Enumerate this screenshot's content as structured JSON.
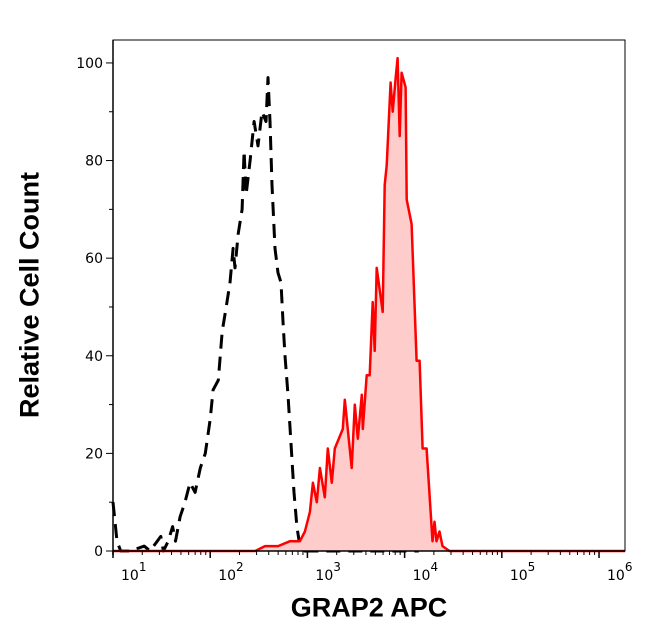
{
  "chart_data": {
    "type": "area",
    "title": "",
    "xlabel": "GRAP2 APC",
    "ylabel": "Relative Cell Count",
    "xscale": "log",
    "xlim": [
      10,
      1850000
    ],
    "ylim": [
      0,
      104.7
    ],
    "grid": false,
    "legend": "none",
    "x_ticks": [
      {
        "base": "10",
        "exp": "1",
        "value": 10
      },
      {
        "base": "10",
        "exp": "2",
        "value": 100
      },
      {
        "base": "10",
        "exp": "3",
        "value": 1000
      },
      {
        "base": "10",
        "exp": "4",
        "value": 10000
      },
      {
        "base": "10",
        "exp": "5",
        "value": 100000
      },
      {
        "base": "10",
        "exp": "6",
        "value": 1000000
      }
    ],
    "y_ticks": [
      "0",
      "20",
      "40",
      "60",
      "80",
      "100"
    ],
    "series": [
      {
        "style": "dashed-line",
        "color": "#000000",
        "x": [
          10,
          11,
          12,
          15,
          21,
          24,
          31,
          33,
          37,
          41,
          44,
          49,
          55,
          62,
          70,
          79,
          89,
          100,
          107,
          121,
          133,
          146,
          160,
          172,
          180,
          194,
          213,
          223,
          234,
          257,
          283,
          310,
          341,
          375,
          393,
          412,
          432,
          464,
          498,
          535,
          561,
          588,
          631,
          678,
          728,
          780,
          837,
          942,
          1500,
          3000,
          10000,
          14000
        ],
        "y": [
          10,
          2,
          0,
          0,
          1,
          0,
          3,
          0,
          2,
          5,
          2,
          7,
          10,
          14,
          12,
          17,
          20,
          27,
          33,
          35,
          45,
          50,
          55,
          62,
          58,
          65,
          70,
          82,
          73,
          80,
          88,
          83,
          90,
          88,
          97,
          88,
          75,
          62,
          57,
          55,
          47,
          40,
          32,
          22,
          12,
          5,
          1,
          0,
          0,
          0,
          0,
          0
        ]
      },
      {
        "style": "filled-line",
        "color": "#ff0000",
        "fill": "#ffcccc",
        "x": [
          10,
          290,
          366,
          500,
          662,
          837,
          942,
          1060,
          1138,
          1250,
          1343,
          1510,
          1621,
          1782,
          1914,
          2312,
          2426,
          2858,
          3070,
          3297,
          3624,
          3710,
          4075,
          4377,
          4700,
          4921,
          5164,
          5945,
          6237,
          6535,
          7179,
          7534,
          8091,
          8474,
          8890,
          9311,
          10240,
          10500,
          11800,
          13270,
          14250,
          15300,
          16830,
          19360,
          20310,
          21280,
          22870,
          24550,
          28950,
          100000,
          1850000
        ],
        "y": [
          0,
          0,
          1,
          1,
          2,
          2,
          4,
          8,
          14,
          10,
          17,
          11,
          21,
          14,
          21,
          25,
          31,
          17,
          30,
          23,
          32,
          25,
          36,
          36,
          51,
          41,
          58,
          49,
          75,
          79,
          96,
          90,
          97,
          101,
          85,
          98,
          95,
          72,
          67,
          39,
          39,
          21,
          21,
          2,
          6,
          2,
          4,
          1,
          0,
          0,
          0
        ]
      }
    ]
  },
  "colors": {
    "axis": "#000000",
    "isotype": "#000000",
    "stained_line": "#ff0000",
    "stained_fill": "#ffcccc"
  }
}
